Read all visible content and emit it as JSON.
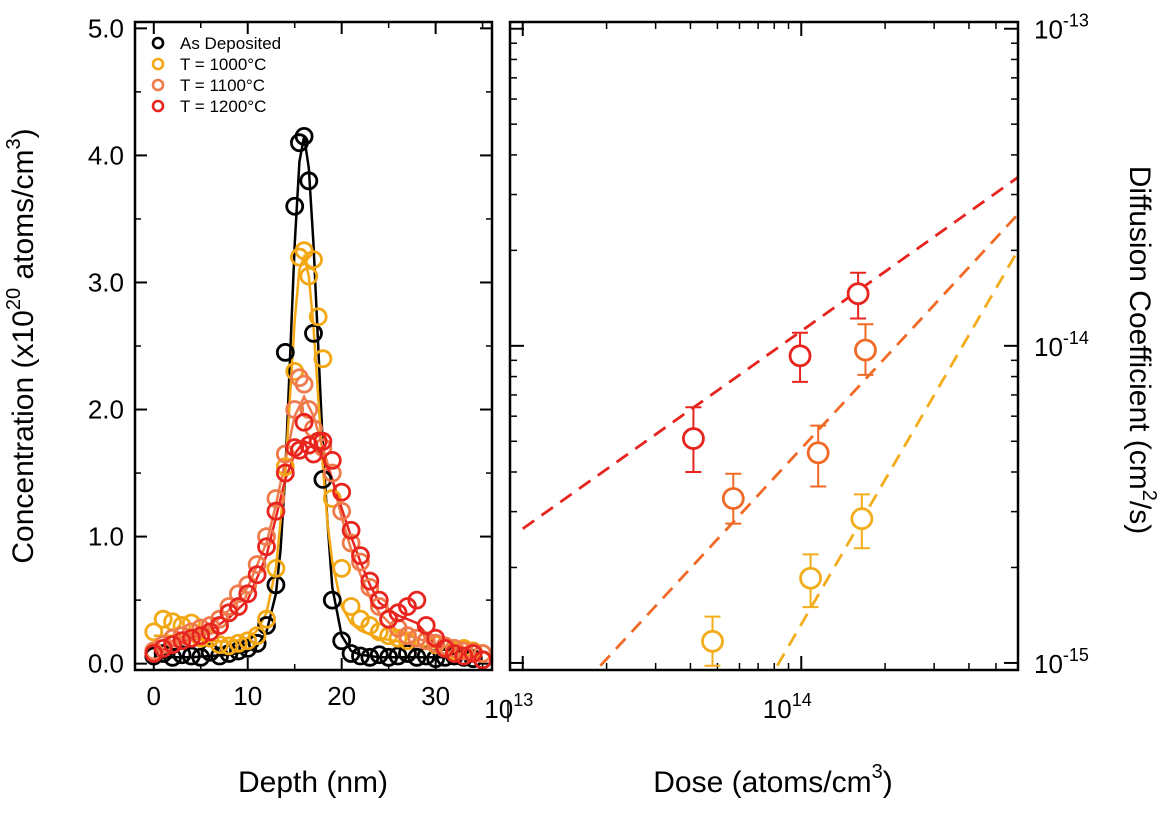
{
  "chart_data": [
    {
      "type": "scatter",
      "xlabel": "Depth (nm)",
      "ylabel_main": "Concentration (x10",
      "ylabel_exp": "20",
      "ylabel_tail": " atoms/cm",
      "ylabel_tail_exp": "3",
      "ylabel_close": ")",
      "xlim": [
        -2,
        36
      ],
      "ylim": [
        -0.05,
        5.05
      ],
      "xticks": [
        0,
        10,
        20,
        30
      ],
      "xtick_labels": [
        "0",
        "10",
        "20",
        "30"
      ],
      "yticks": [
        0,
        1,
        2,
        3,
        4,
        5
      ],
      "ytick_labels": [
        "0.0",
        "1.0",
        "2.0",
        "3.0",
        "4.0",
        "5.0"
      ],
      "legend_position": "top-right",
      "series": [
        {
          "name": "As Deposited",
          "color": "#000000",
          "x": [
            0,
            1,
            2,
            3,
            4,
            5,
            6,
            7,
            8,
            9,
            10,
            11,
            12,
            13,
            14,
            15,
            15.5,
            16,
            16.5,
            17,
            18,
            19,
            20,
            21,
            22,
            23,
            24,
            25,
            26,
            27,
            28,
            29,
            30,
            31,
            32,
            33,
            34,
            35
          ],
          "y": [
            0.06,
            0.08,
            0.05,
            0.07,
            0.06,
            0.05,
            0.09,
            0.06,
            0.08,
            0.1,
            0.12,
            0.16,
            0.3,
            0.62,
            2.45,
            3.6,
            4.1,
            4.15,
            3.8,
            2.6,
            1.45,
            0.5,
            0.18,
            0.08,
            0.06,
            0.05,
            0.07,
            0.05,
            0.06,
            0.08,
            0.05,
            0.06,
            0.04,
            0.05,
            0.06,
            0.05,
            0.04,
            0.03
          ],
          "curve_x": [
            0,
            2,
            4,
            6,
            8,
            10,
            11,
            12,
            13,
            13.5,
            14,
            14.5,
            15,
            15.5,
            16,
            16.5,
            17,
            17.5,
            18,
            18.5,
            19,
            20,
            21,
            22,
            24,
            28,
            32,
            35
          ],
          "curve_y": [
            0.05,
            0.05,
            0.05,
            0.06,
            0.07,
            0.1,
            0.14,
            0.25,
            0.55,
            0.9,
            1.5,
            2.4,
            3.3,
            3.95,
            4.15,
            3.9,
            3.3,
            2.5,
            1.7,
            1.1,
            0.6,
            0.22,
            0.1,
            0.07,
            0.05,
            0.05,
            0.05,
            0.04
          ]
        },
        {
          "name": "T = 1000°C",
          "color": "#f3a712",
          "x": [
            0,
            1,
            2,
            3,
            4,
            5,
            6,
            7,
            8,
            9,
            10,
            11,
            12,
            13,
            14,
            15,
            15.5,
            16,
            16.5,
            17,
            17.5,
            18,
            19,
            20,
            21,
            22,
            23,
            24,
            25,
            26,
            27,
            28,
            29,
            30,
            31,
            32,
            33,
            34,
            35
          ],
          "y": [
            0.25,
            0.35,
            0.33,
            0.3,
            0.32,
            0.2,
            0.2,
            0.15,
            0.14,
            0.16,
            0.18,
            0.22,
            0.35,
            0.75,
            1.55,
            2.3,
            3.2,
            3.25,
            3.05,
            3.18,
            2.73,
            2.4,
            1.3,
            0.75,
            0.45,
            0.35,
            0.3,
            0.25,
            0.22,
            0.2,
            0.18,
            0.2,
            0.18,
            0.15,
            0.12,
            0.1,
            0.12,
            0.1,
            0.08
          ],
          "curve_x": [
            0,
            2,
            4,
            6,
            8,
            10,
            11,
            12,
            13,
            14,
            14.5,
            15,
            15.5,
            16,
            16.5,
            17,
            17.5,
            18,
            18.5,
            19,
            20,
            21,
            22,
            24,
            28,
            32,
            35
          ],
          "curve_y": [
            0.22,
            0.22,
            0.2,
            0.18,
            0.17,
            0.2,
            0.26,
            0.4,
            0.75,
            1.5,
            2.1,
            2.7,
            3.1,
            3.2,
            3.05,
            2.65,
            2.1,
            1.55,
            1.1,
            0.8,
            0.45,
            0.32,
            0.26,
            0.2,
            0.15,
            0.1,
            0.08
          ]
        },
        {
          "name": "T = 1100°C",
          "color": "#ef7a4b",
          "x": [
            0,
            1,
            2,
            3,
            4,
            5,
            6,
            7,
            8,
            9,
            10,
            11,
            12,
            13,
            14,
            15,
            15.5,
            16,
            16.5,
            17,
            17.5,
            18,
            19,
            20,
            21,
            22,
            23,
            24,
            25,
            26,
            27,
            28,
            29,
            30,
            31,
            32,
            33,
            34,
            35
          ],
          "y": [
            0.1,
            0.15,
            0.2,
            0.22,
            0.25,
            0.28,
            0.3,
            0.35,
            0.45,
            0.55,
            0.62,
            0.78,
            1.0,
            1.3,
            1.65,
            2.0,
            2.25,
            2.2,
            2.0,
            1.85,
            1.75,
            1.7,
            1.5,
            1.2,
            0.95,
            0.8,
            0.6,
            0.45,
            0.35,
            0.28,
            0.22,
            0.2,
            0.18,
            0.16,
            0.14,
            0.12,
            0.1,
            0.09,
            0.08
          ],
          "curve_x": [
            0,
            2,
            4,
            6,
            8,
            10,
            12,
            13,
            14,
            15,
            16,
            17,
            18,
            19,
            20,
            21,
            22,
            23,
            24,
            26,
            28,
            30,
            32,
            35
          ],
          "curve_y": [
            0.1,
            0.18,
            0.24,
            0.3,
            0.42,
            0.6,
            0.95,
            1.25,
            1.6,
            1.95,
            2.1,
            1.95,
            1.7,
            1.45,
            1.15,
            0.9,
            0.7,
            0.52,
            0.4,
            0.25,
            0.2,
            0.15,
            0.12,
            0.08
          ]
        },
        {
          "name": "T = 1200°C",
          "color": "#e8241f",
          "x": [
            0,
            1,
            2,
            3,
            4,
            5,
            6,
            7,
            8,
            9,
            10,
            11,
            12,
            13,
            14,
            15,
            15.5,
            16,
            16.5,
            17,
            17.5,
            18,
            19,
            20,
            21,
            22,
            23,
            24,
            25,
            26,
            27,
            28,
            29,
            30,
            31,
            32,
            33,
            34,
            35
          ],
          "y": [
            0.08,
            0.12,
            0.15,
            0.18,
            0.2,
            0.22,
            0.25,
            0.3,
            0.4,
            0.45,
            0.55,
            0.7,
            0.92,
            1.2,
            1.5,
            1.7,
            1.68,
            1.9,
            1.72,
            1.65,
            1.75,
            1.75,
            1.6,
            1.35,
            1.05,
            0.85,
            0.65,
            0.5,
            0.35,
            0.4,
            0.45,
            0.5,
            0.3,
            0.2,
            0.12,
            0.08,
            0.06,
            0.08,
            0.03
          ],
          "curve_x": [
            0,
            2,
            4,
            6,
            8,
            10,
            12,
            13,
            14,
            15,
            16,
            17,
            18,
            19,
            20,
            21,
            22,
            23,
            24,
            26,
            28,
            30,
            32,
            35
          ],
          "curve_y": [
            0.08,
            0.14,
            0.2,
            0.26,
            0.36,
            0.5,
            0.85,
            1.15,
            1.45,
            1.65,
            1.75,
            1.72,
            1.62,
            1.45,
            1.22,
            1.0,
            0.8,
            0.62,
            0.48,
            0.38,
            0.32,
            0.15,
            0.08,
            0.05
          ]
        }
      ]
    },
    {
      "type": "scatter",
      "xlabel_main": "Dose (atoms/cm",
      "xlabel_exp": "3",
      "xlabel_close": ")",
      "ylabel_main": "Diffusion Coefficient (cm",
      "ylabel_exp": "2",
      "ylabel_tail": "/s)",
      "x_scale": "log",
      "y_scale": "log",
      "xlim": [
        9000000000000.0,
        600000000000000.0
      ],
      "ylim": [
        9.5e-16,
        1.05e-13
      ],
      "xtick_labels": [
        {
          "base": "10",
          "exp": "13"
        },
        {
          "base": "10",
          "exp": "14"
        }
      ],
      "ytick_labels": [
        {
          "base": "10",
          "exp": "-15"
        },
        {
          "base": "10",
          "exp": "-14"
        },
        {
          "base": "10",
          "exp": "-13"
        }
      ],
      "series": [
        {
          "color": "#e8241f",
          "points": [
            {
              "x": 41000000000000.0,
              "y": 5.1e-15,
              "err_low": 4e-15,
              "err_high": 6.4e-15
            },
            {
              "x": 99000000000000.0,
              "y": 9.3e-15,
              "err_low": 7.7e-15,
              "err_high": 1.1e-14
            },
            {
              "x": 160000000000000.0,
              "y": 1.46e-14,
              "err_low": 1.22e-14,
              "err_high": 1.7e-14
            }
          ],
          "fit": {
            "x": [
              10000000000000.0,
              600000000000000.0
            ],
            "y": [
              2.65e-15,
              3.4e-14
            ]
          }
        },
        {
          "color": "#f06a25",
          "points": [
            {
              "x": 57000000000000.0,
              "y": 3.3e-15,
              "err_low": 2.75e-15,
              "err_high": 3.95e-15
            },
            {
              "x": 115000000000000.0,
              "y": 4.6e-15,
              "err_low": 3.6e-15,
              "err_high": 5.6e-15
            },
            {
              "x": 170000000000000.0,
              "y": 9.7e-15,
              "err_low": 8.1e-15,
              "err_high": 1.17e-14
            }
          ],
          "fit": {
            "x": [
              19000000000000.0,
              600000000000000.0
            ],
            "y": [
              9.8e-16,
              2.6e-14
            ]
          }
        },
        {
          "color": "#f3ad1c",
          "points": [
            {
              "x": 48000000000000.0,
              "y": 1.17e-15,
              "err_low": 9.8e-16,
              "err_high": 1.4e-15
            },
            {
              "x": 108000000000000.0,
              "y": 1.85e-15,
              "err_low": 1.5e-15,
              "err_high": 2.2e-15
            },
            {
              "x": 165000000000000.0,
              "y": 2.85e-15,
              "err_low": 2.3e-15,
              "err_high": 3.4e-15
            }
          ],
          "fit": {
            "x": [
              82000000000000.0,
              600000000000000.0
            ],
            "y": [
              9.8e-16,
              2e-14
            ]
          }
        }
      ]
    }
  ]
}
